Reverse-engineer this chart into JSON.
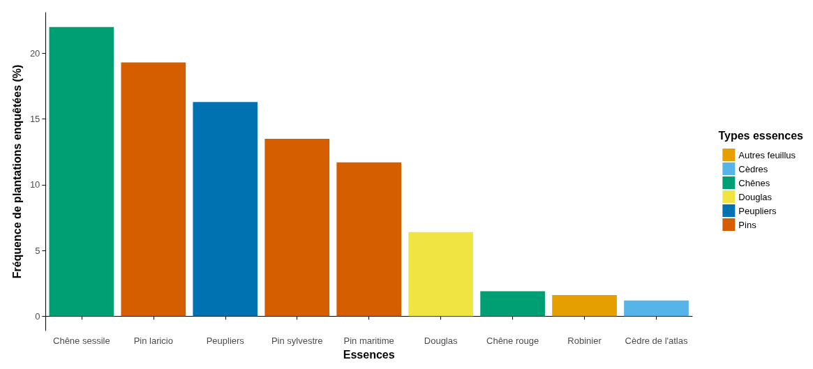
{
  "chart_data": {
    "type": "bar",
    "xlabel": "Essences",
    "ylabel": "Fréquence de plantations enquêtées (%)",
    "legend_title": "Types essences",
    "legend": "right",
    "grid": false,
    "categories": [
      "Chêne sessile",
      "Pin laricio",
      "Peupliers",
      "Pin sylvestre",
      "Pin maritime",
      "Douglas",
      "Chêne rouge",
      "Robinier",
      "Cèdre de l'atlas"
    ],
    "ylim": [
      -1.1,
      23.1
    ],
    "yticks": [
      0,
      5,
      10,
      15,
      20
    ],
    "series": [
      {
        "name": "Autres feuillus",
        "color": "#e69f00",
        "values": [
          null,
          null,
          null,
          null,
          null,
          null,
          null,
          1.6,
          null
        ]
      },
      {
        "name": "Cèdres",
        "color": "#56b4e9",
        "values": [
          null,
          null,
          null,
          null,
          null,
          null,
          null,
          null,
          1.2
        ]
      },
      {
        "name": "Chênes",
        "color": "#009e73",
        "values": [
          22.0,
          null,
          null,
          null,
          null,
          null,
          1.9,
          null,
          null
        ]
      },
      {
        "name": "Douglas",
        "color": "#f0e442",
        "values": [
          null,
          null,
          null,
          null,
          null,
          6.4,
          null,
          null,
          null
        ]
      },
      {
        "name": "Peupliers",
        "color": "#0072b2",
        "values": [
          null,
          null,
          16.3,
          null,
          null,
          null,
          null,
          null,
          null
        ]
      },
      {
        "name": "Pins",
        "color": "#d55e00",
        "values": [
          null,
          19.3,
          null,
          13.5,
          11.7,
          null,
          null,
          null,
          null
        ]
      }
    ]
  }
}
